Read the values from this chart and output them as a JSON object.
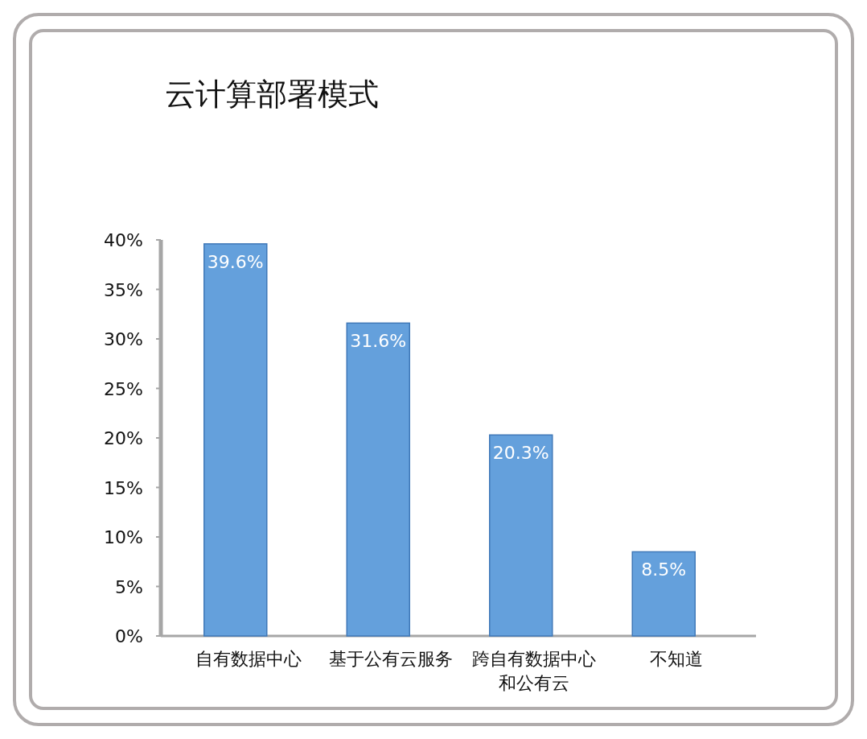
{
  "chart_data": {
    "type": "bar",
    "title": "云计算部署模式",
    "categories": [
      "自有数据中心",
      "基于公有云服务",
      "跨自有数据中心和公有云",
      "不知道"
    ],
    "values": [
      39.6,
      31.6,
      20.3,
      8.5
    ],
    "value_labels": [
      "39.6%",
      "31.6%",
      "20.3%",
      "8.5%"
    ],
    "color": "#64a0dc",
    "ylim": [
      0,
      40
    ],
    "yticks": [
      {
        "value": 0,
        "label": "0%"
      },
      {
        "value": 5,
        "label": "5%"
      },
      {
        "value": 10,
        "label": "10%"
      },
      {
        "value": 15,
        "label": "15%"
      },
      {
        "value": 20,
        "label": "20%"
      },
      {
        "value": 25,
        "label": "25%"
      },
      {
        "value": 30,
        "label": "30%"
      },
      {
        "value": 35,
        "label": "35%"
      },
      {
        "value": 40,
        "label": "40%"
      }
    ]
  }
}
